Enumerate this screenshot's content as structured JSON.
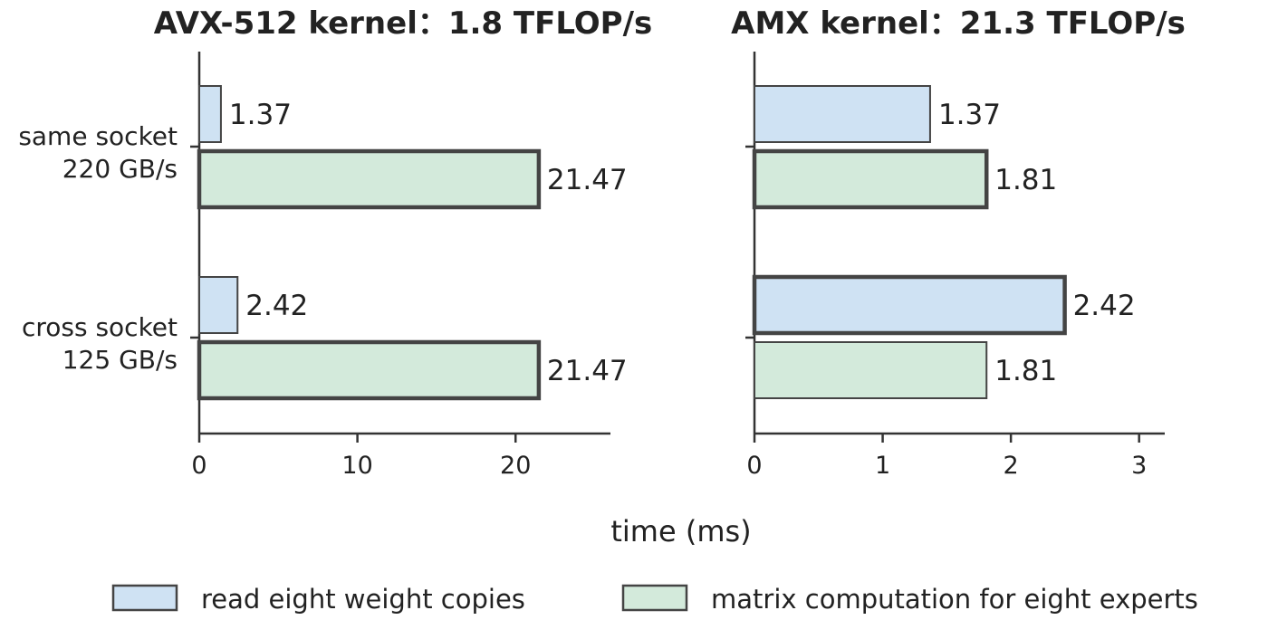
{
  "chart_data": {
    "type": "bar",
    "orientation": "horizontal",
    "xlabel": "time (ms)",
    "categories": [
      "same socket\n220 GB/s",
      "cross socket\n125 GB/s"
    ],
    "legend": [
      {
        "key": "read",
        "label": "read eight weight copies",
        "color": "#cfe2f3"
      },
      {
        "key": "compute",
        "label": "matrix computation for eight experts",
        "color": "#d3eadb"
      }
    ],
    "legend_placement": "bottom",
    "grid": false,
    "panels": [
      {
        "title": "AVX-512 kernel：1.8 TFLOP/s",
        "xlim": [
          0,
          26
        ],
        "xticks": [
          0,
          10,
          20
        ],
        "xtick_labels": [
          "0",
          "10",
          "20"
        ],
        "bars": [
          {
            "category": 0,
            "series": "read",
            "value": 1.37,
            "label": "1.37",
            "emphasis": false
          },
          {
            "category": 0,
            "series": "compute",
            "value": 21.47,
            "label": "21.47",
            "emphasis": true
          },
          {
            "category": 1,
            "series": "read",
            "value": 2.42,
            "label": "2.42",
            "emphasis": false
          },
          {
            "category": 1,
            "series": "compute",
            "value": 21.47,
            "label": "21.47",
            "emphasis": true
          }
        ]
      },
      {
        "title": "AMX kernel：21.3 TFLOP/s",
        "xlim": [
          0,
          3.2
        ],
        "xticks": [
          0,
          1,
          2,
          3
        ],
        "xtick_labels": [
          "0",
          "1",
          "2",
          "3"
        ],
        "bars": [
          {
            "category": 0,
            "series": "read",
            "value": 1.37,
            "label": "1.37",
            "emphasis": false
          },
          {
            "category": 0,
            "series": "compute",
            "value": 1.81,
            "label": "1.81",
            "emphasis": true
          },
          {
            "category": 1,
            "series": "read",
            "value": 2.42,
            "label": "2.42",
            "emphasis": true
          },
          {
            "category": 1,
            "series": "compute",
            "value": 1.81,
            "label": "1.81",
            "emphasis": false
          }
        ]
      }
    ]
  }
}
